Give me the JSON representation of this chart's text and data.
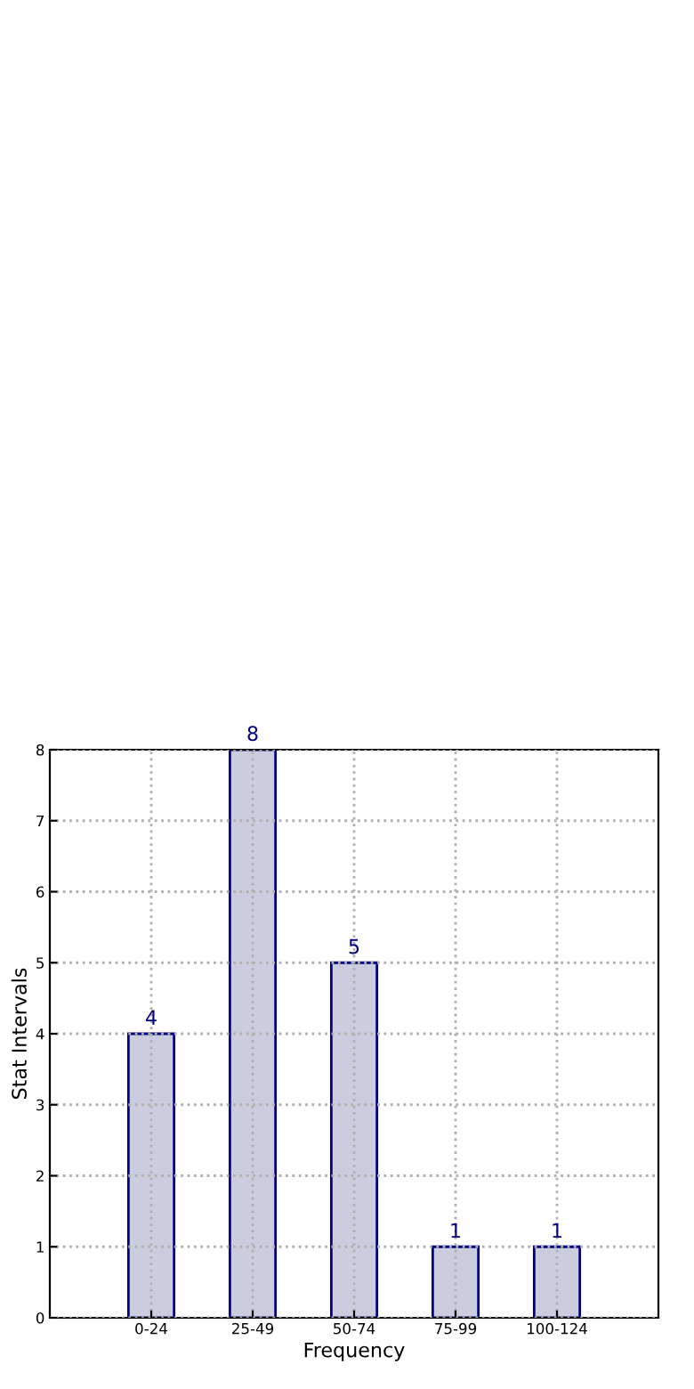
{
  "chart_data": {
    "type": "bar",
    "xlabel": "Frequency",
    "ylabel": "Stat Intervals",
    "categories": [
      "0-24",
      "25-49",
      "50-74",
      "75-99",
      "100-124"
    ],
    "values": [
      4,
      8,
      5,
      1,
      1
    ],
    "color": "#ccccdf",
    "ylim": [
      0,
      8
    ],
    "yticks": [
      0,
      1,
      2,
      3,
      4,
      5,
      6,
      7,
      8
    ],
    "grid": true,
    "data_labels": true
  }
}
